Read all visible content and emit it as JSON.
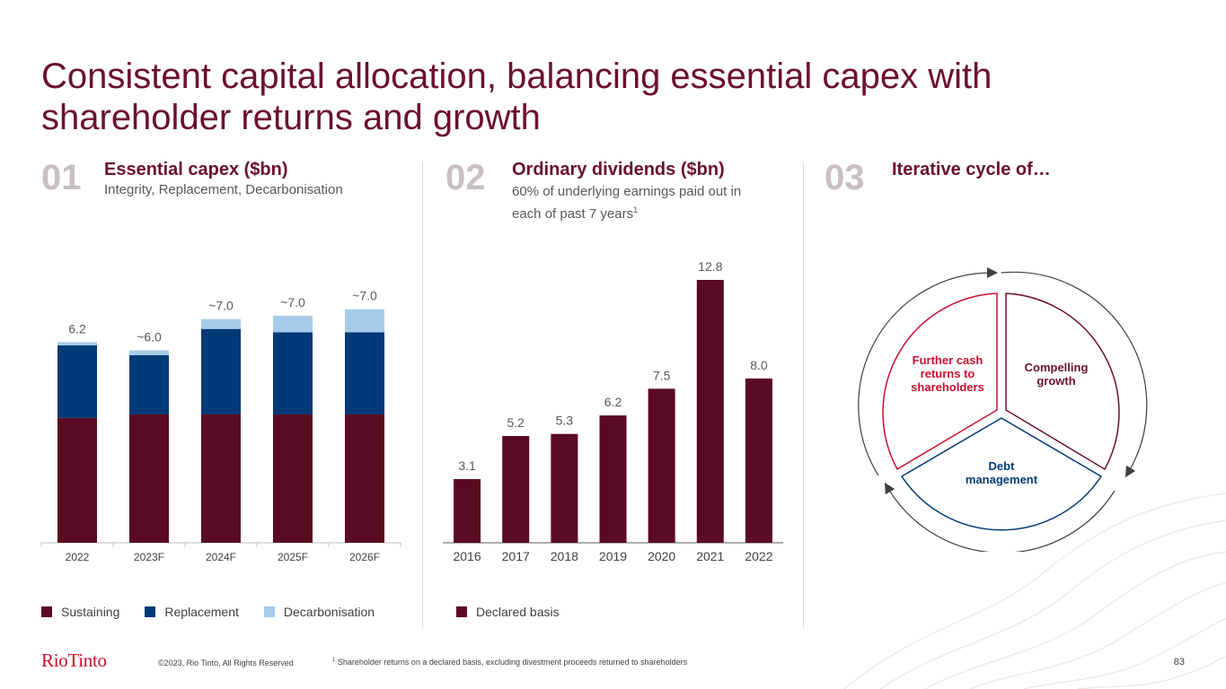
{
  "title": "Consistent capital allocation, balancing essential capex with shareholder returns and growth",
  "sections": [
    {
      "num": "01",
      "heading": "Essential capex ($bn)",
      "sub": "Integrity, Replacement, Decarbonisation"
    },
    {
      "num": "02",
      "heading": "Ordinary dividends ($bn)",
      "sub": "60% of underlying earnings paid out in each of past 7 years",
      "sub_sup": "1"
    },
    {
      "num": "03",
      "heading": "Iterative cycle of…"
    }
  ],
  "colors": {
    "sustaining": "#5b0a23",
    "replacement": "#003a78",
    "decarbonisation": "#a6cbea",
    "title": "#6b1030",
    "accent_red": "#c8102e"
  },
  "chart_data": [
    {
      "type": "bar",
      "stacked": true,
      "title": "Essential capex ($bn)",
      "categories": [
        "2022",
        "2023F",
        "2024F",
        "2025F",
        "2026F"
      ],
      "series": [
        {
          "name": "Sustaining",
          "values": [
            3.8,
            3.9,
            3.9,
            3.9,
            3.9
          ]
        },
        {
          "name": "Replacement",
          "values": [
            2.2,
            1.8,
            2.6,
            2.5,
            2.5
          ]
        },
        {
          "name": "Decarbonisation",
          "values": [
            0.1,
            0.15,
            0.3,
            0.5,
            0.7
          ]
        }
      ],
      "total_labels": [
        "6.2",
        "~6.0",
        "~7.0",
        "~7.0",
        "~7.0"
      ],
      "ylim": [
        0,
        7.5
      ]
    },
    {
      "type": "bar",
      "title": "Ordinary dividends ($bn)",
      "categories": [
        "2016",
        "2017",
        "2018",
        "2019",
        "2020",
        "2021",
        "2022"
      ],
      "series": [
        {
          "name": "Declared basis",
          "values": [
            3.1,
            5.2,
            5.3,
            6.2,
            7.5,
            12.8,
            8.0
          ]
        }
      ],
      "value_labels": [
        "3.1",
        "5.2",
        "5.3",
        "6.2",
        "7.5",
        "12.8",
        "8.0"
      ],
      "ylim": [
        0,
        13
      ]
    }
  ],
  "cycle": {
    "segments": [
      "Further cash returns to shareholders",
      "Compelling growth",
      "Debt management"
    ]
  },
  "legend1": [
    {
      "label": "Sustaining",
      "color": "#5b0a23"
    },
    {
      "label": "Replacement",
      "color": "#003a78"
    },
    {
      "label": "Decarbonisation",
      "color": "#a6cbea"
    }
  ],
  "legend2": [
    {
      "label": "Declared basis",
      "color": "#5b0a23"
    }
  ],
  "footer": {
    "logo": "RioTinto",
    "copyright": "©2023, Rio Tinto, All Rights Reserved",
    "footnote_num": "1",
    "footnote": "Shareholder returns on a declared basis, excluding divestment proceeds returned to shareholders",
    "page": "83"
  }
}
